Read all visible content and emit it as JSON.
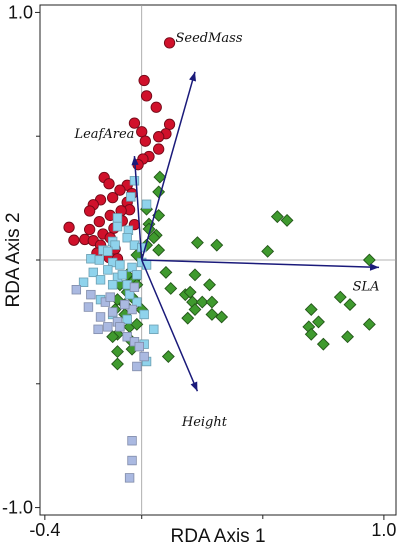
{
  "chart_data": {
    "type": "scatter",
    "title": "",
    "xlabel": "RDA Axis 1",
    "ylabel": "RDA Axis 2",
    "xlim": [
      -0.42,
      1.05
    ],
    "ylim": [
      -1.03,
      1.03
    ],
    "x_ticks": [
      {
        "value": -0.4,
        "label": "-0.4"
      },
      {
        "value": 1.0,
        "label": "1.0"
      }
    ],
    "y_ticks": [
      {
        "value": 1.0,
        "label": "1.0"
      },
      {
        "value": -1.0,
        "label": "-1.0"
      }
    ],
    "grid": false,
    "zero_lines": true,
    "series": [
      {
        "marker": "circle",
        "color": "#d0112b",
        "points": [
          [
            0.115,
            0.877
          ],
          [
            0.01,
            0.725
          ],
          [
            0.02,
            0.663
          ],
          [
            0.06,
            0.617
          ],
          [
            -0.03,
            0.553
          ],
          [
            0.0,
            0.518
          ],
          [
            0.115,
            0.548
          ],
          [
            0.1,
            0.51
          ],
          [
            0.07,
            0.498
          ],
          [
            0.015,
            0.48
          ],
          [
            0.03,
            0.418
          ],
          [
            0.07,
            0.448
          ],
          [
            0.005,
            0.408
          ],
          [
            -0.015,
            0.385
          ],
          [
            -0.155,
            0.333
          ],
          [
            -0.135,
            0.308
          ],
          [
            -0.06,
            0.302
          ],
          [
            -0.09,
            0.282
          ],
          [
            -0.04,
            0.268
          ],
          [
            -0.12,
            0.252
          ],
          [
            -0.17,
            0.243
          ],
          [
            -0.06,
            0.233
          ],
          [
            -0.2,
            0.223
          ],
          [
            -0.05,
            0.203
          ],
          [
            -0.085,
            0.199
          ],
          [
            -0.215,
            0.198
          ],
          [
            -0.13,
            0.18
          ],
          [
            -0.175,
            0.155
          ],
          [
            -0.08,
            0.158
          ],
          [
            -0.03,
            0.143
          ],
          [
            -0.115,
            0.128
          ],
          [
            -0.215,
            0.123
          ],
          [
            -0.16,
            0.105
          ],
          [
            -0.28,
            0.08
          ],
          [
            -0.235,
            0.083
          ],
          [
            -0.2,
            0.078
          ],
          [
            -0.13,
            0.09
          ],
          [
            -0.17,
            0.06
          ],
          [
            -0.11,
            0.045
          ],
          [
            -0.185,
            0.028
          ],
          [
            -0.135,
            0.01
          ],
          [
            -0.1,
            0.005
          ],
          [
            -0.3,
            0.132
          ]
        ]
      },
      {
        "marker": "diamond",
        "color": "#3f9a2e",
        "points": [
          [
            0.075,
            0.335
          ],
          [
            0.07,
            0.275
          ],
          [
            0.02,
            0.205
          ],
          [
            0.07,
            0.18
          ],
          [
            0.03,
            0.145
          ],
          [
            0.03,
            0.125
          ],
          [
            0.06,
            0.1
          ],
          [
            0.05,
            0.09
          ],
          [
            0.02,
            0.06
          ],
          [
            0.07,
            0.04
          ],
          [
            0.23,
            0.07
          ],
          [
            0.31,
            0.06
          ],
          [
            0.52,
            0.035
          ],
          [
            0.56,
            0.175
          ],
          [
            0.6,
            0.16
          ],
          [
            0.94,
            0.0
          ],
          [
            0.22,
            -0.06
          ],
          [
            0.1,
            -0.05
          ],
          [
            0.28,
            -0.1
          ],
          [
            0.12,
            -0.115
          ],
          [
            0.18,
            -0.14
          ],
          [
            0.2,
            -0.13
          ],
          [
            0.21,
            -0.17
          ],
          [
            0.25,
            -0.17
          ],
          [
            0.29,
            -0.17
          ],
          [
            0.22,
            -0.2
          ],
          [
            0.29,
            -0.22
          ],
          [
            0.33,
            -0.23
          ],
          [
            0.19,
            -0.235
          ],
          [
            0.7,
            -0.2
          ],
          [
            0.69,
            -0.27
          ],
          [
            0.73,
            -0.25
          ],
          [
            0.7,
            -0.3
          ],
          [
            0.75,
            -0.34
          ],
          [
            0.82,
            -0.15
          ],
          [
            0.86,
            -0.18
          ],
          [
            0.85,
            -0.31
          ],
          [
            0.94,
            -0.26
          ],
          [
            0.11,
            -0.39
          ],
          [
            -0.02,
            0.02
          ],
          [
            -0.06,
            -0.06
          ],
          [
            -0.03,
            -0.08
          ],
          [
            -0.09,
            -0.1
          ],
          [
            -0.06,
            -0.13
          ],
          [
            -0.1,
            -0.16
          ],
          [
            -0.07,
            -0.18
          ],
          [
            -0.11,
            -0.2
          ],
          [
            -0.07,
            -0.22
          ],
          [
            -0.05,
            -0.27
          ],
          [
            -0.1,
            -0.3
          ],
          [
            -0.05,
            -0.32
          ],
          [
            -0.04,
            -0.36
          ],
          [
            -0.1,
            -0.37
          ],
          [
            -0.1,
            -0.42
          ],
          [
            -0.12,
            -0.31
          ],
          [
            -0.02,
            -0.26
          ],
          [
            0.0,
            -0.2
          ],
          [
            -0.04,
            -0.15
          ],
          [
            -0.02,
            -0.1
          ]
        ]
      },
      {
        "marker": "square",
        "color": "#8fd3ec",
        "points": [
          [
            0.02,
            0.225
          ],
          [
            -0.03,
            0.32
          ],
          [
            -0.045,
            0.255
          ],
          [
            -0.1,
            0.17
          ],
          [
            -0.1,
            0.135
          ],
          [
            -0.055,
            0.12
          ],
          [
            -0.06,
            0.09
          ],
          [
            -0.12,
            0.075
          ],
          [
            -0.11,
            0.06
          ],
          [
            -0.16,
            0.04
          ],
          [
            -0.14,
            0.035
          ],
          [
            -0.21,
            0.005
          ],
          [
            -0.175,
            0.0
          ],
          [
            -0.12,
            -0.01
          ],
          [
            -0.09,
            -0.02
          ],
          [
            -0.04,
            -0.03
          ],
          [
            0.0,
            -0.01
          ],
          [
            0.02,
            -0.02
          ],
          [
            -0.2,
            -0.05
          ],
          [
            -0.14,
            -0.04
          ],
          [
            -0.1,
            -0.07
          ],
          [
            -0.17,
            -0.08
          ],
          [
            -0.12,
            -0.1
          ],
          [
            -0.06,
            -0.1
          ],
          [
            -0.02,
            -0.06
          ],
          [
            -0.02,
            -0.17
          ],
          [
            0.01,
            -0.22
          ],
          [
            0.05,
            -0.28
          ],
          [
            -0.06,
            -0.24
          ],
          [
            -0.12,
            -0.22
          ],
          [
            -0.03,
            0.06
          ],
          [
            0.0,
            0.05
          ],
          [
            -0.05,
            -0.14
          ],
          [
            -0.08,
            -0.06
          ],
          [
            0.01,
            -0.34
          ],
          [
            0.02,
            -0.41
          ],
          [
            -0.17,
            -0.16
          ],
          [
            -0.24,
            -0.09
          ]
        ]
      },
      {
        "marker": "square",
        "color": "#aab9e1",
        "points": [
          [
            -0.27,
            -0.12
          ],
          [
            -0.22,
            -0.19
          ],
          [
            -0.17,
            -0.23
          ],
          [
            -0.14,
            -0.27
          ],
          [
            -0.18,
            -0.28
          ],
          [
            -0.1,
            -0.25
          ],
          [
            -0.04,
            -0.2
          ],
          [
            -0.03,
            -0.11
          ],
          [
            -0.21,
            -0.14
          ],
          [
            -0.15,
            -0.17
          ],
          [
            -0.12,
            -0.21
          ],
          [
            -0.09,
            -0.27
          ],
          [
            -0.06,
            -0.31
          ],
          [
            -0.03,
            -0.33
          ],
          [
            -0.01,
            -0.35
          ],
          [
            -0.02,
            -0.43
          ],
          [
            -0.04,
            -0.73
          ],
          [
            -0.04,
            -0.81
          ],
          [
            -0.05,
            -0.88
          ],
          [
            0.01,
            -0.39
          ],
          [
            -0.13,
            -0.15
          ],
          [
            -0.07,
            -0.18
          ]
        ]
      }
    ],
    "vectors": [
      {
        "label": "SeedMass",
        "x": 0.22,
        "y": 0.76
      },
      {
        "label": "LeafArea",
        "x": -0.03,
        "y": 0.42
      },
      {
        "label": "SLA",
        "x": 0.98,
        "y": -0.03
      },
      {
        "label": "Height",
        "x": 0.23,
        "y": -0.53
      }
    ],
    "vector_color": "#1a1a7a"
  }
}
